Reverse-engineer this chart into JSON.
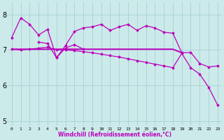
{
  "background_color": "#cceaea",
  "grid_color": "#a0cccc",
  "line_color": "#bb00bb",
  "xlabel": "Windchill (Refroidissement éolien,°C)",
  "xlim": [
    -0.5,
    23.5
  ],
  "ylim": [
    4.85,
    8.35
  ],
  "yticks": [
    5,
    6,
    7,
    8
  ],
  "xticks": [
    0,
    1,
    2,
    3,
    4,
    5,
    6,
    7,
    8,
    9,
    10,
    11,
    12,
    13,
    14,
    15,
    16,
    17,
    18,
    19,
    20,
    21,
    22,
    23
  ],
  "line1_x": [
    0,
    1,
    2,
    3,
    4,
    5,
    6,
    7,
    8,
    9,
    10,
    11,
    12,
    13,
    14,
    15,
    16,
    17,
    18,
    19,
    20,
    21,
    22,
    23
  ],
  "line1_y": [
    7.35,
    7.9,
    7.72,
    7.42,
    7.58,
    6.78,
    7.12,
    7.52,
    7.62,
    7.65,
    7.72,
    7.55,
    7.65,
    7.72,
    7.55,
    7.68,
    7.62,
    7.5,
    7.47,
    6.92,
    6.93,
    6.62,
    6.52,
    6.55
  ],
  "line2_x": [
    0,
    1,
    2,
    3,
    4,
    5,
    6,
    7,
    8,
    9,
    10,
    11,
    12,
    13,
    14,
    15,
    16,
    17,
    18,
    19
  ],
  "line2_y": [
    7.02,
    7.02,
    7.02,
    7.02,
    7.02,
    7.02,
    7.02,
    7.02,
    7.02,
    7.02,
    7.02,
    7.02,
    7.02,
    7.02,
    7.02,
    7.02,
    7.02,
    7.02,
    7.02,
    6.92
  ],
  "line3_x": [
    0,
    1,
    2,
    3,
    4,
    5,
    6,
    7,
    8,
    9,
    10,
    11,
    12,
    13,
    14,
    15,
    16,
    17,
    18,
    19,
    20,
    21,
    22,
    23
  ],
  "line3_y": [
    7.02,
    7.0,
    7.02,
    7.05,
    7.08,
    7.0,
    7.0,
    6.98,
    6.95,
    6.92,
    6.88,
    6.84,
    6.8,
    6.75,
    6.7,
    6.65,
    6.6,
    6.55,
    6.5,
    6.9,
    6.5,
    6.32,
    5.95,
    5.45
  ],
  "line4_x": [
    3,
    4,
    5,
    6,
    7,
    8
  ],
  "line4_y": [
    7.22,
    7.18,
    6.78,
    7.05,
    7.15,
    7.02
  ]
}
